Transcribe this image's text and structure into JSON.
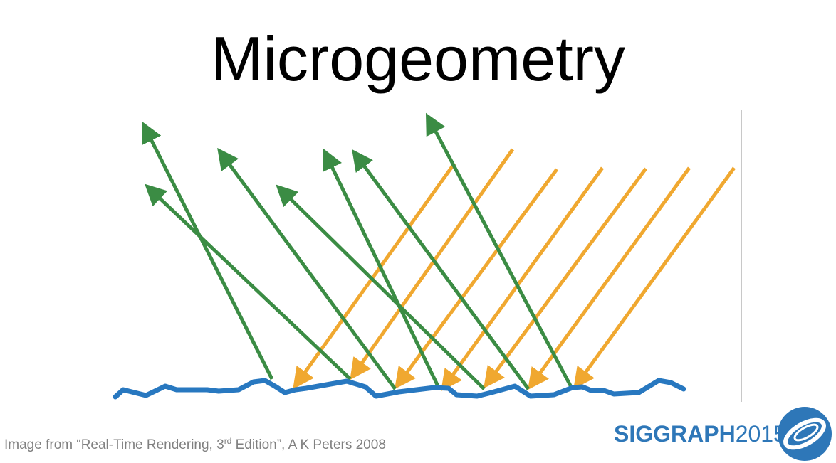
{
  "slide": {
    "title": "Microgeometry"
  },
  "credit": {
    "prefix": "Image from “Real-Time Rendering, 3",
    "superscript": "rd",
    "suffix": " Edition”, A K Peters 2008"
  },
  "brand": {
    "name": "SIGGRAPH",
    "year": "2015",
    "logo_icon": "siggraph-swirl-logo-icon"
  },
  "colors": {
    "incident_light": "#f0a830",
    "reflected_light": "#3b8c44",
    "surface": "#2878c0",
    "brand_blue": "#2e77b8",
    "credit_text": "#808080"
  }
}
